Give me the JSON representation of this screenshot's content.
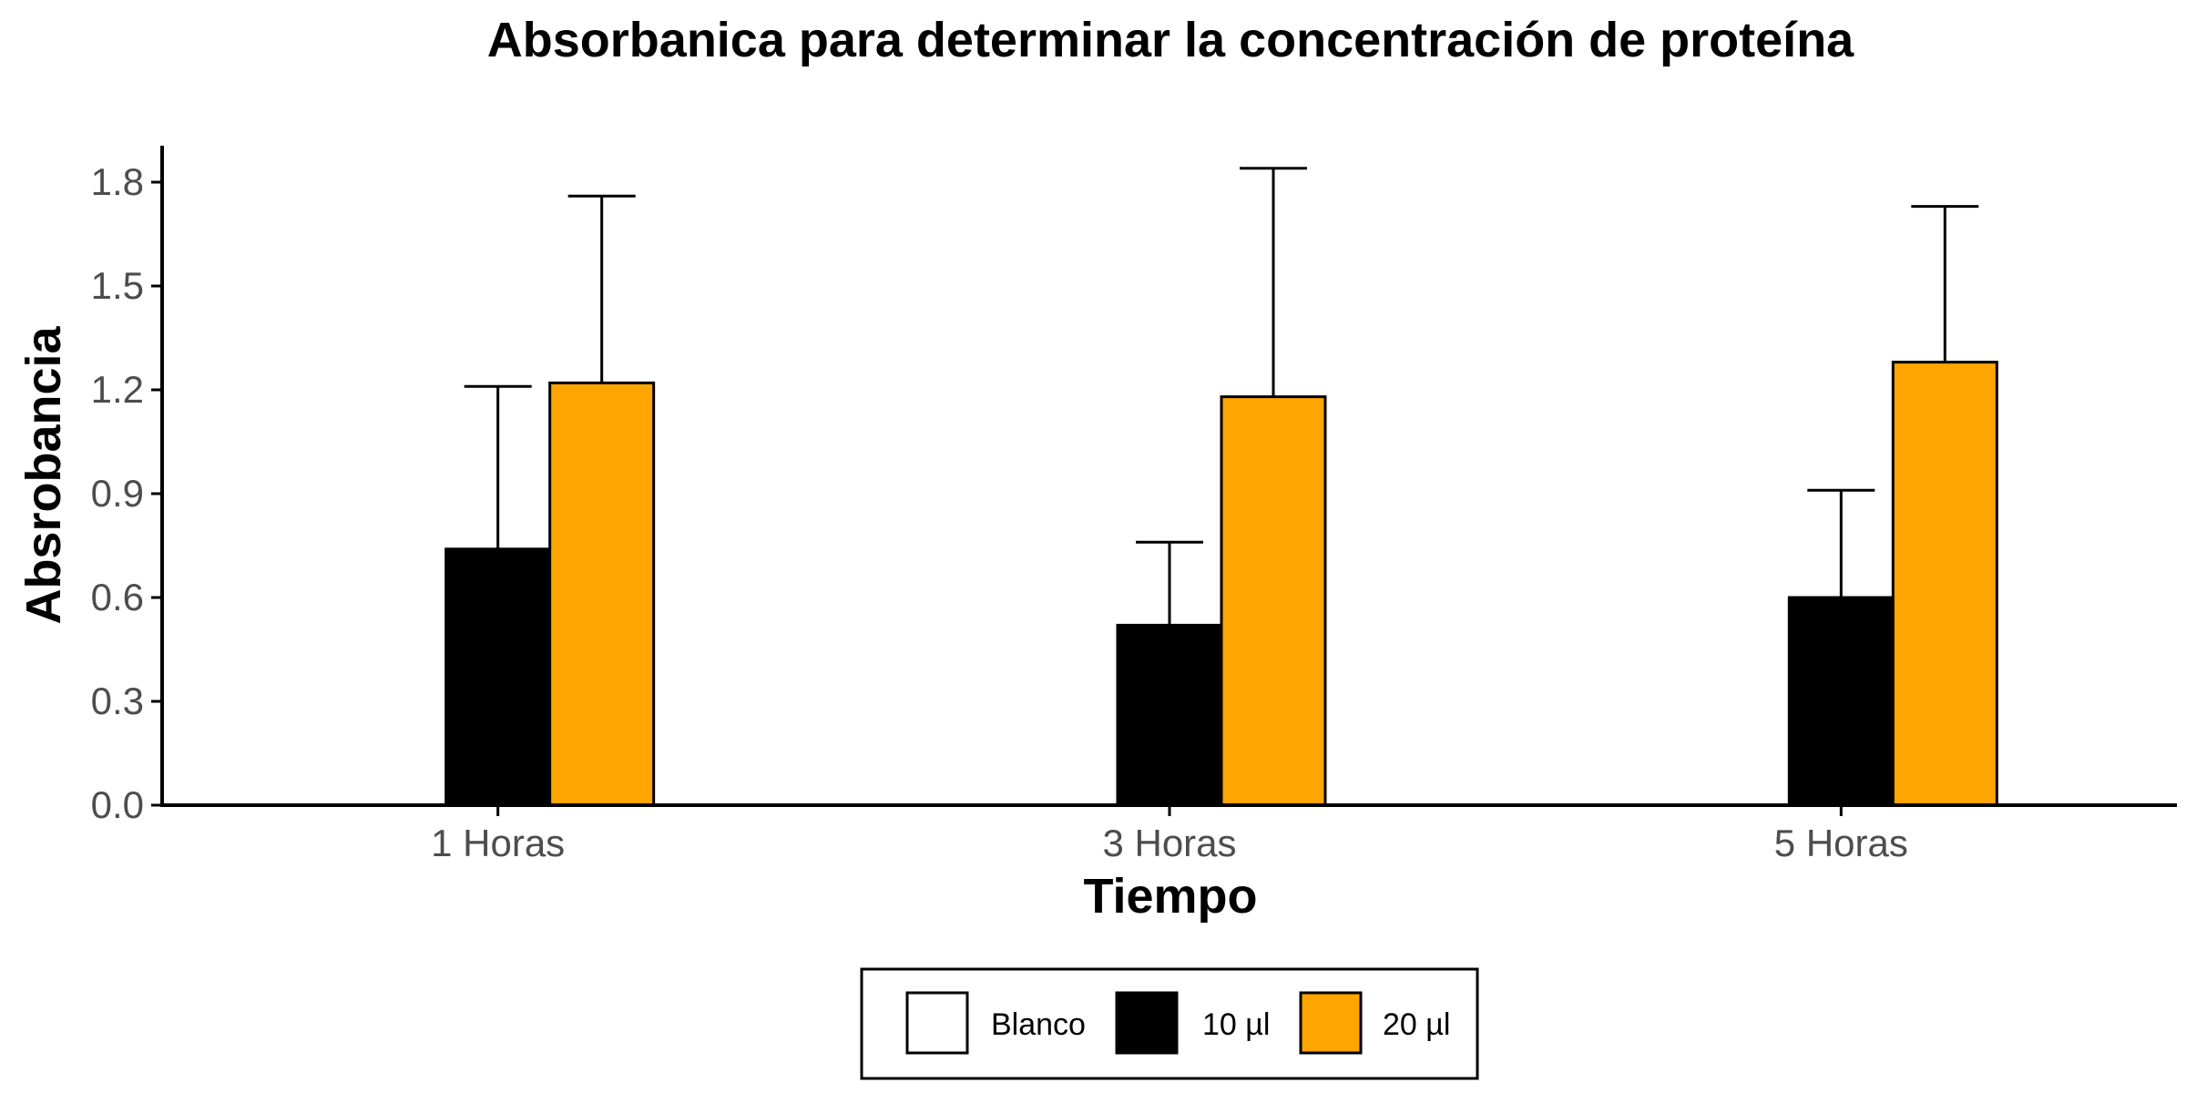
{
  "chart_data": {
    "type": "bar",
    "title": "Absorbanica para determinar la concentración de proteína",
    "xlabel": "Tiempo",
    "ylabel": "Absrobancia",
    "categories": [
      "1 Horas",
      "3 Horas",
      "5 Horas"
    ],
    "ylim": [
      0,
      1.9
    ],
    "yticks": [
      "0.0",
      "0.3",
      "0.6",
      "0.9",
      "1.2",
      "1.5",
      "1.8"
    ],
    "grid": false,
    "legend_position": "bottom",
    "series": [
      {
        "name": "Blanco",
        "color": "#ffffff",
        "values": [
          0,
          0,
          0
        ],
        "error_upper": [
          0,
          0,
          0
        ]
      },
      {
        "name": "10 µl",
        "color": "#000000",
        "values": [
          0.74,
          0.52,
          0.6
        ],
        "error_upper": [
          1.21,
          0.76,
          0.91
        ]
      },
      {
        "name": "20 µl",
        "color": "#ffa500",
        "values": [
          1.22,
          1.18,
          1.28
        ],
        "error_upper": [
          1.76,
          1.84,
          1.73
        ]
      }
    ]
  }
}
